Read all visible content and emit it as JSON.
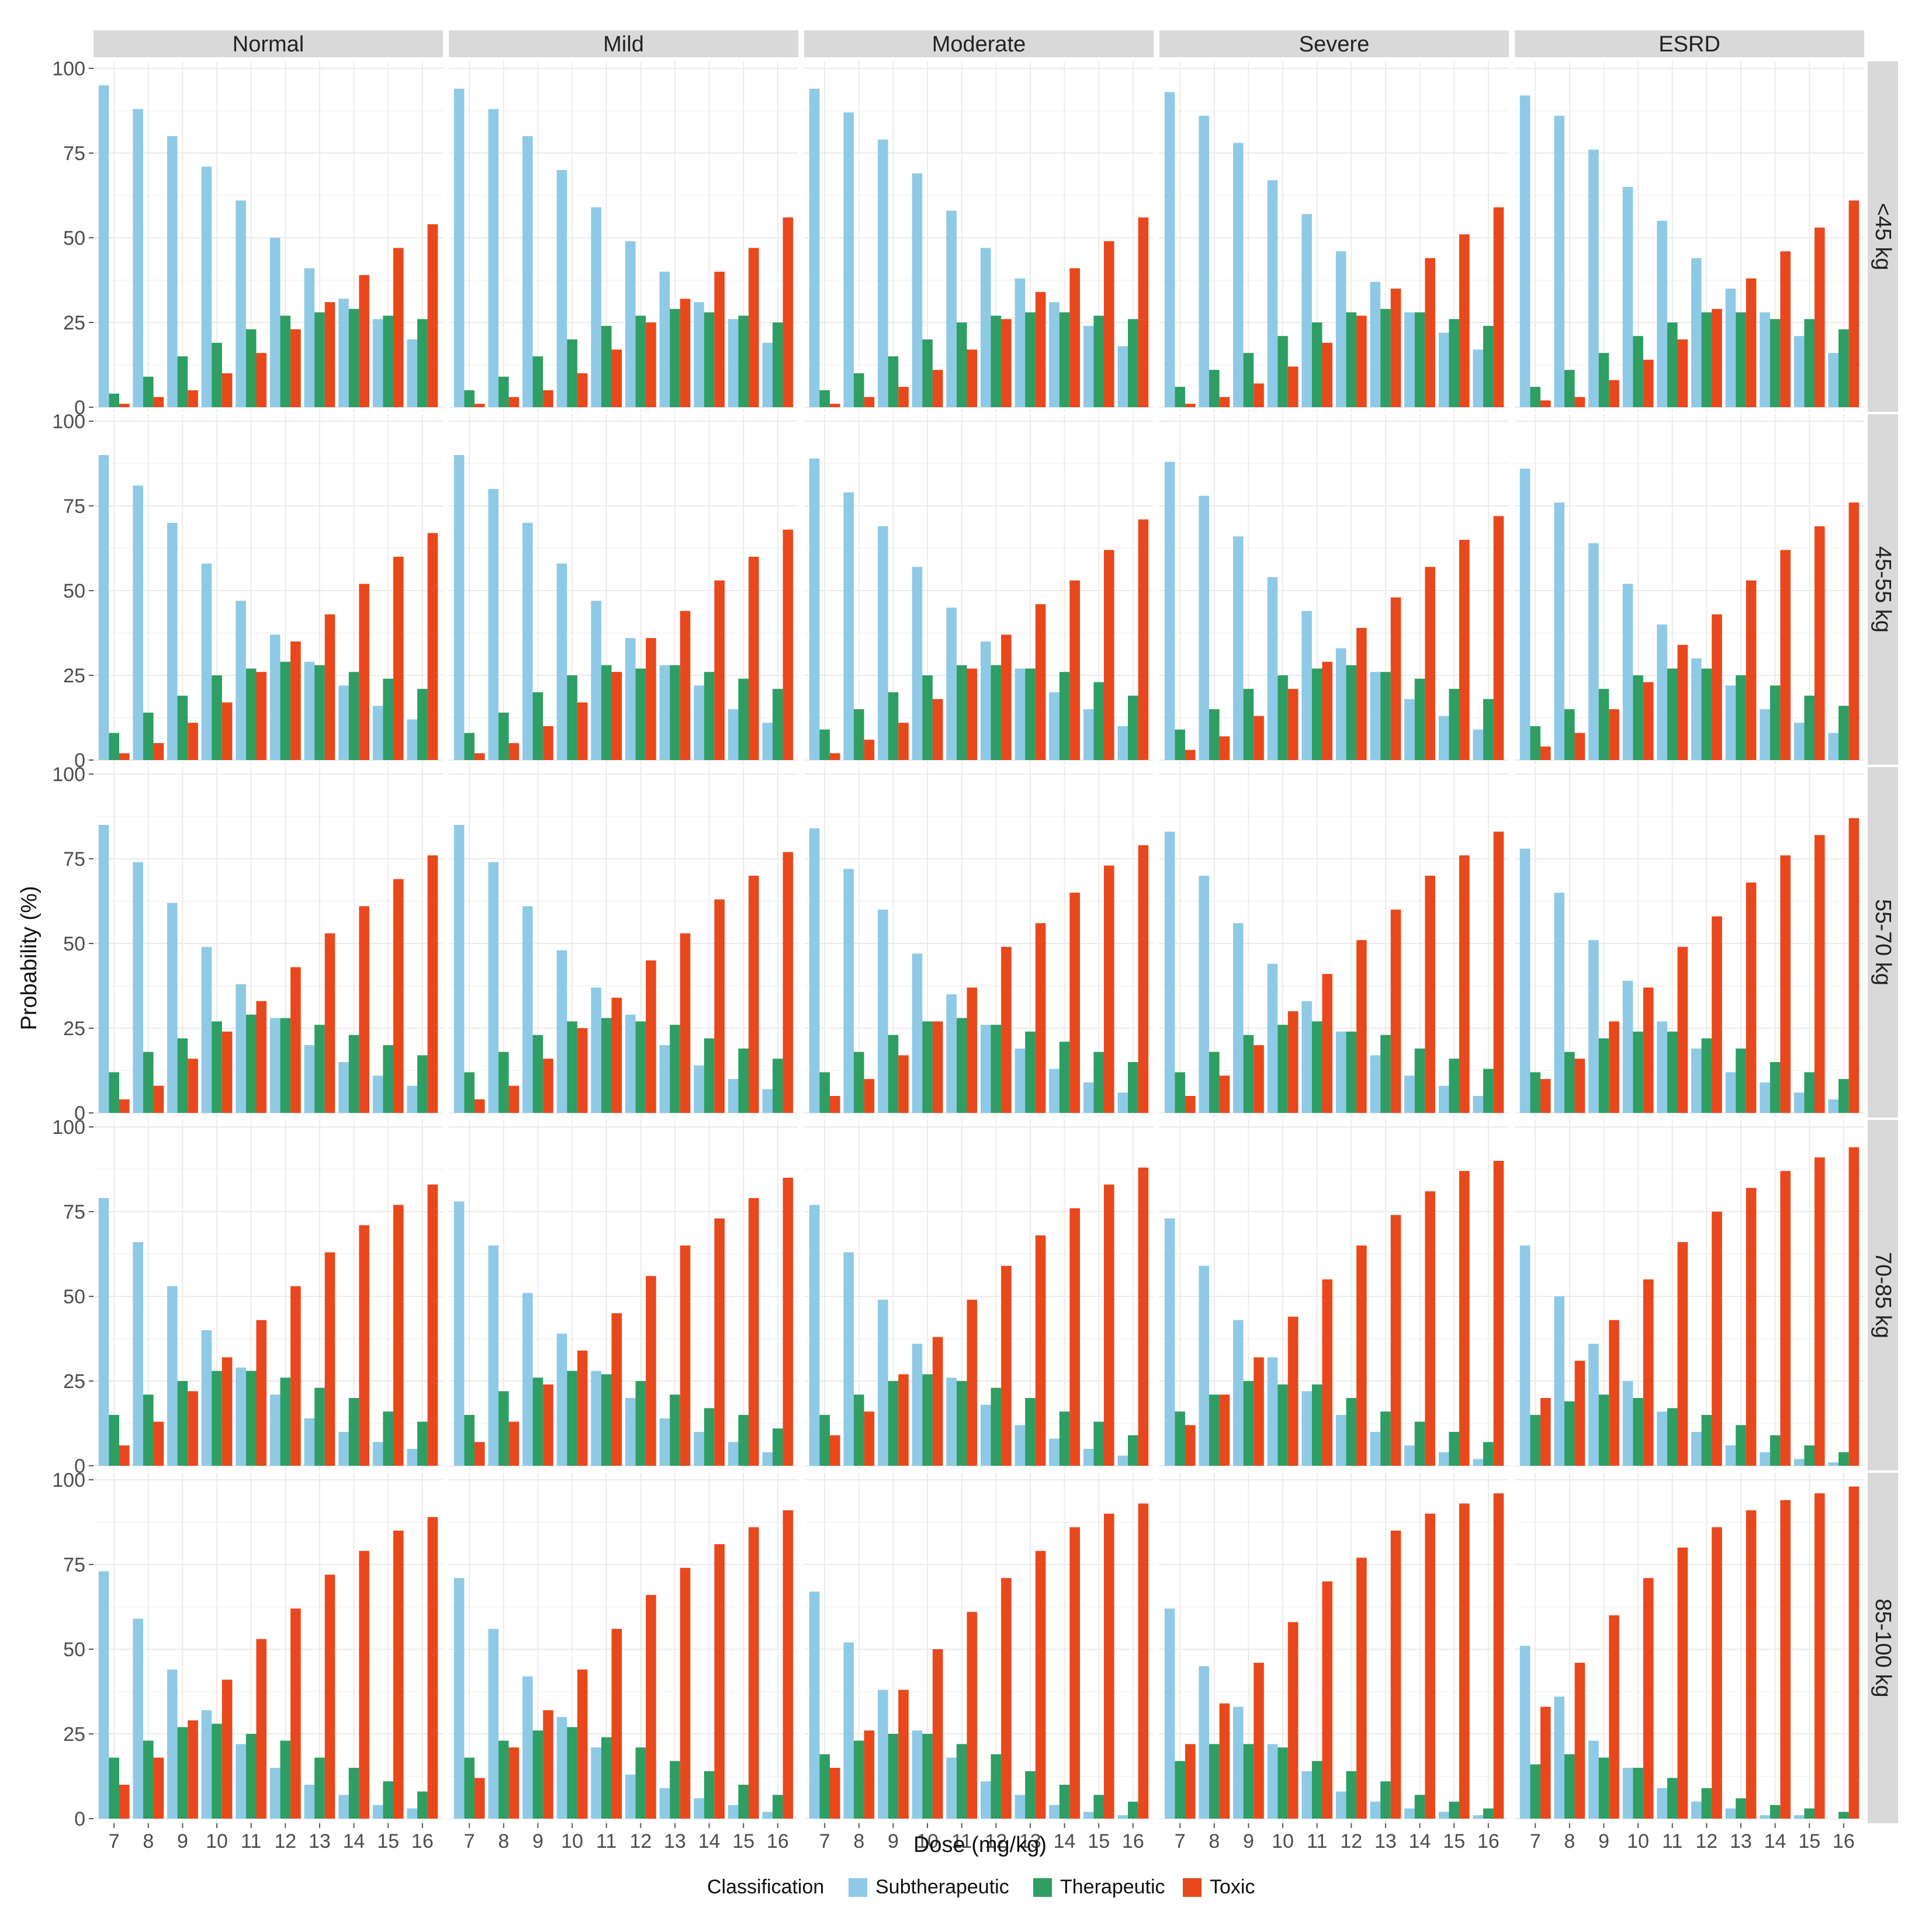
{
  "chart_data": {
    "type": "bar",
    "layout": "faceted grid (rows x columns)",
    "xlabel": "Dose (mg/kg)",
    "ylabel": "Probability (%)",
    "ylim": [
      0,
      100
    ],
    "yticks": [
      0,
      25,
      50,
      75,
      100
    ],
    "categories": [
      "7",
      "8",
      "9",
      "10",
      "11",
      "12",
      "13",
      "14",
      "15",
      "16"
    ],
    "grid": true,
    "legend": {
      "title": "Classification",
      "position": "bottom",
      "entries": [
        "Subtherapeutic",
        "Therapeutic",
        "Toxic"
      ]
    },
    "series_names": [
      "Subtherapeutic",
      "Therapeutic",
      "Toxic"
    ],
    "colors": {
      "Subtherapeutic": "#8ecae6",
      "Therapeutic": "#2e9e63",
      "Toxic": "#e8481c"
    },
    "columns": [
      "Normal",
      "Mild",
      "Moderate",
      "Severe",
      "ESRD"
    ],
    "rows": [
      "<45 kg",
      "45-55 kg",
      "55-70 kg",
      "70-85 kg",
      "85-100 kg"
    ],
    "panels": [
      [
        {
          "Subtherapeutic": [
            95,
            88,
            80,
            71,
            61,
            50,
            41,
            32,
            26,
            20
          ],
          "Therapeutic": [
            4,
            9,
            15,
            19,
            23,
            27,
            28,
            29,
            27,
            26
          ],
          "Toxic": [
            1,
            3,
            5,
            10,
            16,
            23,
            31,
            39,
            47,
            54
          ]
        },
        {
          "Subtherapeutic": [
            94,
            88,
            80,
            70,
            59,
            49,
            40,
            31,
            26,
            19
          ],
          "Therapeutic": [
            5,
            9,
            15,
            20,
            24,
            27,
            29,
            28,
            27,
            25
          ],
          "Toxic": [
            1,
            3,
            5,
            10,
            17,
            25,
            32,
            40,
            47,
            56
          ]
        },
        {
          "Subtherapeutic": [
            94,
            87,
            79,
            69,
            58,
            47,
            38,
            31,
            24,
            18
          ],
          "Therapeutic": [
            5,
            10,
            15,
            20,
            25,
            27,
            28,
            28,
            27,
            26
          ],
          "Toxic": [
            1,
            3,
            6,
            11,
            17,
            26,
            34,
            41,
            49,
            56
          ]
        },
        {
          "Subtherapeutic": [
            93,
            86,
            78,
            67,
            57,
            46,
            37,
            28,
            22,
            17
          ],
          "Therapeutic": [
            6,
            11,
            16,
            21,
            25,
            28,
            29,
            28,
            26,
            24
          ],
          "Toxic": [
            1,
            3,
            7,
            12,
            19,
            27,
            35,
            44,
            51,
            59
          ]
        },
        {
          "Subtherapeutic": [
            92,
            86,
            76,
            65,
            55,
            44,
            35,
            28,
            21,
            16
          ],
          "Therapeutic": [
            6,
            11,
            16,
            21,
            25,
            28,
            28,
            26,
            26,
            23
          ],
          "Toxic": [
            2,
            3,
            8,
            14,
            20,
            29,
            38,
            46,
            53,
            61
          ]
        }
      ],
      [
        {
          "Subtherapeutic": [
            90,
            81,
            70,
            58,
            47,
            37,
            29,
            22,
            16,
            12
          ],
          "Therapeutic": [
            8,
            14,
            19,
            25,
            27,
            29,
            28,
            26,
            24,
            21
          ],
          "Toxic": [
            2,
            5,
            11,
            17,
            26,
            35,
            43,
            52,
            60,
            67
          ]
        },
        {
          "Subtherapeutic": [
            90,
            80,
            70,
            58,
            47,
            36,
            28,
            22,
            15,
            11
          ],
          "Therapeutic": [
            8,
            14,
            20,
            25,
            28,
            27,
            28,
            26,
            24,
            21
          ],
          "Toxic": [
            2,
            5,
            10,
            17,
            26,
            36,
            44,
            53,
            60,
            68
          ]
        },
        {
          "Subtherapeutic": [
            89,
            79,
            69,
            57,
            45,
            35,
            27,
            20,
            15,
            10
          ],
          "Therapeutic": [
            9,
            15,
            20,
            25,
            28,
            28,
            27,
            26,
            23,
            19
          ],
          "Toxic": [
            2,
            6,
            11,
            18,
            27,
            37,
            46,
            53,
            62,
            71
          ]
        },
        {
          "Subtherapeutic": [
            88,
            78,
            66,
            54,
            44,
            33,
            26,
            18,
            13,
            9
          ],
          "Therapeutic": [
            9,
            15,
            21,
            25,
            27,
            28,
            26,
            24,
            21,
            18
          ],
          "Toxic": [
            3,
            7,
            13,
            21,
            29,
            39,
            48,
            57,
            65,
            72
          ]
        },
        {
          "Subtherapeutic": [
            86,
            76,
            64,
            52,
            40,
            30,
            22,
            15,
            11,
            8
          ],
          "Therapeutic": [
            10,
            15,
            21,
            25,
            27,
            27,
            25,
            22,
            19,
            16
          ],
          "Toxic": [
            4,
            8,
            15,
            23,
            34,
            43,
            53,
            62,
            69,
            76
          ]
        }
      ],
      [
        {
          "Subtherapeutic": [
            85,
            74,
            62,
            49,
            38,
            28,
            20,
            15,
            11,
            8
          ],
          "Therapeutic": [
            12,
            18,
            22,
            27,
            29,
            28,
            26,
            23,
            20,
            17
          ],
          "Toxic": [
            4,
            8,
            16,
            24,
            33,
            43,
            53,
            61,
            69,
            76
          ]
        },
        {
          "Subtherapeutic": [
            85,
            74,
            61,
            48,
            37,
            29,
            20,
            14,
            10,
            7
          ],
          "Therapeutic": [
            12,
            18,
            23,
            27,
            28,
            27,
            26,
            22,
            19,
            16
          ],
          "Toxic": [
            4,
            8,
            16,
            25,
            34,
            45,
            53,
            63,
            70,
            77
          ]
        },
        {
          "Subtherapeutic": [
            84,
            72,
            60,
            47,
            35,
            26,
            19,
            13,
            9,
            6
          ],
          "Therapeutic": [
            12,
            18,
            23,
            27,
            28,
            26,
            24,
            21,
            18,
            15
          ],
          "Toxic": [
            5,
            10,
            17,
            27,
            37,
            49,
            56,
            65,
            73,
            79
          ]
        },
        {
          "Subtherapeutic": [
            83,
            70,
            56,
            44,
            33,
            24,
            17,
            11,
            8,
            5
          ],
          "Therapeutic": [
            12,
            18,
            23,
            26,
            27,
            24,
            23,
            19,
            16,
            13
          ],
          "Toxic": [
            5,
            11,
            20,
            30,
            41,
            51,
            60,
            70,
            76,
            83
          ]
        },
        {
          "Subtherapeutic": [
            78,
            65,
            51,
            39,
            27,
            19,
            12,
            9,
            6,
            4
          ],
          "Therapeutic": [
            12,
            18,
            22,
            24,
            24,
            22,
            19,
            15,
            12,
            10
          ],
          "Toxic": [
            10,
            16,
            27,
            37,
            49,
            58,
            68,
            76,
            82,
            87
          ]
        }
      ],
      [
        {
          "Subtherapeutic": [
            79,
            66,
            53,
            40,
            29,
            21,
            14,
            10,
            7,
            5
          ],
          "Therapeutic": [
            15,
            21,
            25,
            28,
            28,
            26,
            23,
            20,
            16,
            13
          ],
          "Toxic": [
            6,
            13,
            22,
            32,
            43,
            53,
            63,
            71,
            77,
            83
          ]
        },
        {
          "Subtherapeutic": [
            78,
            65,
            51,
            39,
            28,
            20,
            14,
            10,
            7,
            4
          ],
          "Therapeutic": [
            15,
            22,
            26,
            28,
            27,
            25,
            21,
            17,
            15,
            11
          ],
          "Toxic": [
            7,
            13,
            24,
            34,
            45,
            56,
            65,
            73,
            79,
            85
          ]
        },
        {
          "Subtherapeutic": [
            77,
            63,
            49,
            36,
            26,
            18,
            12,
            8,
            5,
            3
          ],
          "Therapeutic": [
            15,
            21,
            25,
            27,
            25,
            23,
            20,
            16,
            13,
            9
          ],
          "Toxic": [
            9,
            16,
            27,
            38,
            49,
            59,
            68,
            76,
            83,
            88
          ]
        },
        {
          "Subtherapeutic": [
            73,
            59,
            43,
            32,
            22,
            15,
            10,
            6,
            4,
            2
          ],
          "Therapeutic": [
            16,
            21,
            25,
            24,
            24,
            20,
            16,
            13,
            10,
            7
          ],
          "Toxic": [
            12,
            21,
            32,
            44,
            55,
            65,
            74,
            81,
            87,
            90
          ]
        },
        {
          "Subtherapeutic": [
            65,
            50,
            36,
            25,
            16,
            10,
            6,
            4,
            2,
            1
          ],
          "Therapeutic": [
            15,
            19,
            21,
            20,
            17,
            15,
            12,
            9,
            6,
            4
          ],
          "Toxic": [
            20,
            31,
            43,
            55,
            66,
            75,
            82,
            87,
            91,
            94
          ]
        }
      ],
      [
        {
          "Subtherapeutic": [
            73,
            59,
            44,
            32,
            22,
            15,
            10,
            7,
            4,
            3
          ],
          "Therapeutic": [
            18,
            23,
            27,
            28,
            25,
            23,
            18,
            15,
            11,
            8
          ],
          "Toxic": [
            10,
            18,
            29,
            41,
            53,
            62,
            72,
            79,
            85,
            89
          ]
        },
        {
          "Subtherapeutic": [
            71,
            56,
            42,
            30,
            21,
            13,
            9,
            6,
            4,
            2
          ],
          "Therapeutic": [
            18,
            23,
            26,
            27,
            24,
            21,
            17,
            14,
            10,
            7
          ],
          "Toxic": [
            12,
            21,
            32,
            44,
            56,
            66,
            74,
            81,
            86,
            91
          ]
        },
        {
          "Subtherapeutic": [
            67,
            52,
            38,
            26,
            18,
            11,
            7,
            4,
            2,
            1
          ],
          "Therapeutic": [
            19,
            23,
            25,
            25,
            22,
            19,
            14,
            10,
            7,
            5
          ],
          "Toxic": [
            15,
            26,
            38,
            50,
            61,
            71,
            79,
            86,
            90,
            93
          ]
        },
        {
          "Subtherapeutic": [
            62,
            45,
            33,
            22,
            14,
            8,
            5,
            3,
            2,
            1
          ],
          "Therapeutic": [
            17,
            22,
            22,
            21,
            17,
            14,
            11,
            7,
            5,
            3
          ],
          "Toxic": [
            22,
            34,
            46,
            58,
            70,
            77,
            85,
            90,
            93,
            96
          ]
        },
        {
          "Subtherapeutic": [
            51,
            36,
            23,
            15,
            9,
            5,
            3,
            1,
            1,
            0
          ],
          "Therapeutic": [
            16,
            19,
            18,
            15,
            12,
            9,
            6,
            4,
            3,
            2
          ],
          "Toxic": [
            33,
            46,
            60,
            71,
            80,
            86,
            91,
            94,
            96,
            98
          ]
        }
      ]
    ]
  }
}
